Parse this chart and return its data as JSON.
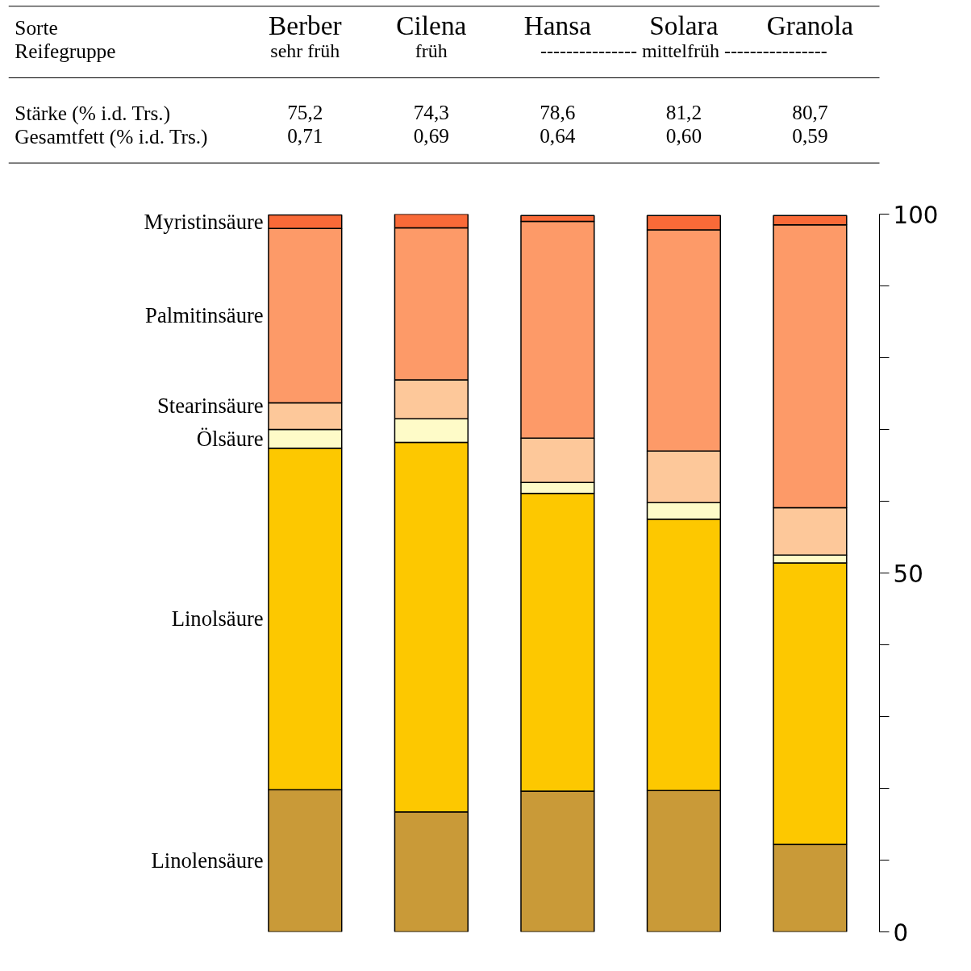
{
  "chart_data": {
    "type": "bar",
    "stacked": true,
    "categories": [
      "Berber",
      "Cilena",
      "Hansa",
      "Solara",
      "Granola"
    ],
    "series": [
      {
        "name": "Linolensäure",
        "color": "#c99a38",
        "values": [
          19.8,
          16.7,
          19.6,
          19.7,
          12.2
        ]
      },
      {
        "name": "Linolsäure",
        "color": "#fdc800",
        "values": [
          47.6,
          51.5,
          41.5,
          37.8,
          39.2
        ]
      },
      {
        "name": "Ölsäure",
        "color": "#fefbc8",
        "values": [
          2.6,
          3.3,
          1.5,
          2.3,
          1.1
        ]
      },
      {
        "name": "Stearinsäure",
        "color": "#fdc89a",
        "values": [
          3.7,
          5.4,
          6.2,
          7.2,
          6.6
        ]
      },
      {
        "name": "Palmitinsäure",
        "color": "#fd9a68",
        "values": [
          24.3,
          21.2,
          30.2,
          30.8,
          39.4
        ]
      },
      {
        "name": "Myristinsäure",
        "color": "#f96a38",
        "values": [
          1.9,
          1.9,
          0.8,
          2.0,
          1.3
        ]
      }
    ],
    "ylim": [
      0,
      100
    ],
    "yticks": [
      0,
      {
        "value": 10,
        "label": null
      },
      {
        "value": 20,
        "label": null
      },
      {
        "value": 30,
        "label": null
      },
      {
        "value": 40,
        "label": null
      },
      50,
      {
        "value": 60,
        "label": null
      },
      {
        "value": 70,
        "label": null
      },
      {
        "value": 80,
        "label": null
      },
      {
        "value": 90,
        "label": null
      },
      100
    ],
    "tick_labels": "y",
    "grid": false,
    "annotations": [
      "Sorte",
      "Reifegruppe",
      "sehr früh",
      "früh",
      "--------------- mittelfrüh ----------------",
      "Stärke      (% i.d. Trs.)",
      "Gesamtfett (% i.d. Trs.)",
      "75,2",
      "74,3",
      "78,6",
      "81,2",
      "80,7",
      "0,71",
      "0,69",
      "0,64",
      "0,60",
      "0,59"
    ]
  }
}
